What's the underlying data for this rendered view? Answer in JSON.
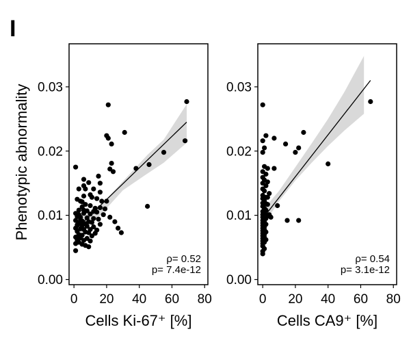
{
  "panel_letter": "I",
  "ylabel": "Phenotypic abnormality",
  "y_ticks": [
    "0.00",
    "0.01",
    "0.02",
    "0.03"
  ],
  "x_ticks": [
    "0",
    "20",
    "40",
    "60",
    "80"
  ],
  "chart_data": [
    {
      "type": "scatter",
      "xlabel": "Cells Ki-67⁺ [%]",
      "ylabel": "Phenotypic abnormality",
      "xlim": [
        -3,
        82
      ],
      "ylim": [
        -0.0008,
        0.0367
      ],
      "annotation": [
        "ρ= 0.52",
        "p= 7.4e-12"
      ],
      "fit": {
        "x": [
          1,
          69
        ],
        "y": [
          0.0078,
          0.0245
        ]
      },
      "ci_band": {
        "x": [
          1,
          15,
          30,
          45,
          55,
          69
        ],
        "lower": [
          0.0065,
          0.0097,
          0.0139,
          0.0165,
          0.0182,
          0.0213
        ],
        "upper": [
          0.0091,
          0.0112,
          0.0153,
          0.0194,
          0.0218,
          0.0273
        ]
      },
      "points": [
        [
          69,
          0.0277
        ],
        [
          21,
          0.0272
        ],
        [
          31,
          0.0229
        ],
        [
          20,
          0.0224
        ],
        [
          21,
          0.022
        ],
        [
          23,
          0.0211
        ],
        [
          68,
          0.0216
        ],
        [
          55,
          0.0198
        ],
        [
          46,
          0.0179
        ],
        [
          38,
          0.0173
        ],
        [
          23,
          0.0181
        ],
        [
          22,
          0.0172
        ],
        [
          24,
          0.0168
        ],
        [
          15,
          0.0161
        ],
        [
          1,
          0.0175
        ],
        [
          16,
          0.015
        ],
        [
          6,
          0.0156
        ],
        [
          9,
          0.0151
        ],
        [
          6,
          0.0146
        ],
        [
          3,
          0.0141
        ],
        [
          7,
          0.0141
        ],
        [
          12,
          0.0141
        ],
        [
          16,
          0.0136
        ],
        [
          10,
          0.0132
        ],
        [
          2,
          0.0125
        ],
        [
          6,
          0.013
        ],
        [
          11,
          0.0128
        ],
        [
          14,
          0.0126
        ],
        [
          4,
          0.0122
        ],
        [
          17,
          0.0122
        ],
        [
          20,
          0.0122
        ],
        [
          45,
          0.0114
        ],
        [
          7,
          0.0117
        ],
        [
          10,
          0.0115
        ],
        [
          5,
          0.0113
        ],
        [
          13,
          0.0111
        ],
        [
          16,
          0.0112
        ],
        [
          19,
          0.011
        ],
        [
          3,
          0.0108
        ],
        [
          8,
          0.0107
        ],
        [
          12,
          0.0106
        ],
        [
          14,
          0.0105
        ],
        [
          1,
          0.0103
        ],
        [
          6,
          0.0103
        ],
        [
          10,
          0.0102
        ],
        [
          18,
          0.0101
        ],
        [
          22,
          0.0097
        ],
        [
          2,
          0.0098
        ],
        [
          4,
          0.0097
        ],
        [
          8,
          0.0096
        ],
        [
          12,
          0.0095
        ],
        [
          15,
          0.0094
        ],
        [
          25,
          0.009
        ],
        [
          1,
          0.0092
        ],
        [
          5,
          0.0091
        ],
        [
          9,
          0.009
        ],
        [
          11,
          0.0089
        ],
        [
          3,
          0.0088
        ],
        [
          7,
          0.0087
        ],
        [
          16,
          0.0086
        ],
        [
          27,
          0.008
        ],
        [
          2,
          0.0085
        ],
        [
          5,
          0.0084
        ],
        [
          8,
          0.0083
        ],
        [
          12,
          0.0082
        ],
        [
          1,
          0.008
        ],
        [
          4,
          0.0079
        ],
        [
          6,
          0.0078
        ],
        [
          10,
          0.0078
        ],
        [
          14,
          0.0077
        ],
        [
          29,
          0.0073
        ],
        [
          2,
          0.0075
        ],
        [
          7,
          0.0074
        ],
        [
          9,
          0.0073
        ],
        [
          13,
          0.0072
        ],
        [
          3,
          0.007
        ],
        [
          5,
          0.0069
        ],
        [
          11,
          0.0068
        ],
        [
          1,
          0.0066
        ],
        [
          4,
          0.0065
        ],
        [
          8,
          0.0064
        ],
        [
          2,
          0.0062
        ],
        [
          6,
          0.0061
        ],
        [
          10,
          0.006
        ],
        [
          3,
          0.0058
        ],
        [
          1,
          0.0056
        ],
        [
          5,
          0.0055
        ],
        [
          7,
          0.0053
        ],
        [
          9,
          0.0051
        ],
        [
          1,
          0.0045
        ],
        [
          2,
          0.0064
        ],
        [
          4,
          0.0093
        ],
        [
          3,
          0.0101
        ],
        [
          6,
          0.0108
        ],
        [
          5,
          0.0121
        ]
      ]
    },
    {
      "type": "scatter",
      "xlabel": "Cells CA9⁺ [%]",
      "ylabel": "",
      "xlim": [
        -3,
        82
      ],
      "ylim": [
        -0.0008,
        0.0367
      ],
      "annotation": [
        "ρ= 0.54",
        "p= 3.1e-12"
      ],
      "fit": {
        "x": [
          0,
          66
        ],
        "y": [
          0.0095,
          0.031
        ]
      },
      "ci_band": {
        "x": [
          0,
          10,
          20,
          30,
          40,
          50,
          62
        ],
        "lower": [
          0.0083,
          0.0122,
          0.0154,
          0.0182,
          0.0208,
          0.0232,
          0.0258
        ],
        "upper": [
          0.0108,
          0.0138,
          0.0175,
          0.0212,
          0.025,
          0.0292,
          0.0348
        ]
      },
      "points": [
        [
          66,
          0.0277
        ],
        [
          0,
          0.0272
        ],
        [
          2,
          0.0224
        ],
        [
          7,
          0.022
        ],
        [
          25,
          0.0229
        ],
        [
          14,
          0.0211
        ],
        [
          20,
          0.0198
        ],
        [
          22,
          0.0205
        ],
        [
          0,
          0.0216
        ],
        [
          1,
          0.0205
        ],
        [
          0,
          0.0198
        ],
        [
          40,
          0.018
        ],
        [
          1,
          0.0176
        ],
        [
          3,
          0.0173
        ],
        [
          7,
          0.0173
        ],
        [
          0,
          0.0168
        ],
        [
          2,
          0.0164
        ],
        [
          0,
          0.0159
        ],
        [
          1,
          0.0155
        ],
        [
          3,
          0.0152
        ],
        [
          0,
          0.015
        ],
        [
          2,
          0.0146
        ],
        [
          0,
          0.0141
        ],
        [
          1,
          0.0138
        ],
        [
          4,
          0.0134
        ],
        [
          0,
          0.0131
        ],
        [
          2,
          0.0128
        ],
        [
          0,
          0.0126
        ],
        [
          1,
          0.0123
        ],
        [
          0,
          0.0119
        ],
        [
          3,
          0.0117
        ],
        [
          9,
          0.0115
        ],
        [
          0,
          0.0114
        ],
        [
          1,
          0.0111
        ],
        [
          2,
          0.0108
        ],
        [
          0,
          0.0106
        ],
        [
          1,
          0.0103
        ],
        [
          0,
          0.0101
        ],
        [
          3,
          0.0099
        ],
        [
          0,
          0.0097
        ],
        [
          2,
          0.0095
        ],
        [
          15,
          0.0092
        ],
        [
          22,
          0.0092
        ],
        [
          0,
          0.0092
        ],
        [
          1,
          0.009
        ],
        [
          0,
          0.0088
        ],
        [
          2,
          0.0086
        ],
        [
          0,
          0.0084
        ],
        [
          1,
          0.0082
        ],
        [
          0,
          0.008
        ],
        [
          1,
          0.0078
        ],
        [
          0,
          0.0076
        ],
        [
          2,
          0.0074
        ],
        [
          0,
          0.0072
        ],
        [
          1,
          0.007
        ],
        [
          0,
          0.0068
        ],
        [
          1,
          0.0066
        ],
        [
          0,
          0.0064
        ],
        [
          2,
          0.0062
        ],
        [
          0,
          0.006
        ],
        [
          1,
          0.0058
        ],
        [
          0,
          0.0056
        ],
        [
          0,
          0.0052
        ],
        [
          1,
          0.0048
        ],
        [
          0,
          0.0044
        ],
        [
          0,
          0.004
        ],
        [
          4,
          0.0101
        ],
        [
          5,
          0.0097
        ],
        [
          2,
          0.0118
        ],
        [
          3,
          0.0128
        ]
      ]
    }
  ]
}
